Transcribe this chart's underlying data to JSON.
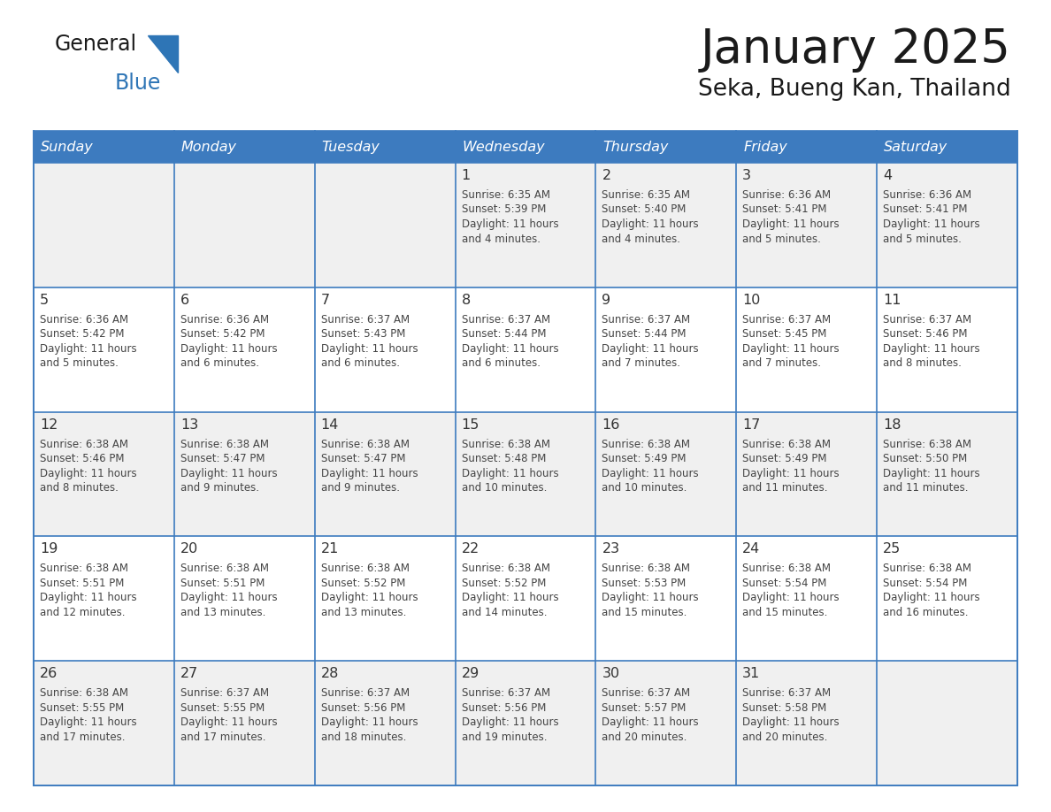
{
  "title": "January 2025",
  "subtitle": "Seka, Bueng Kan, Thailand",
  "days_of_week": [
    "Sunday",
    "Monday",
    "Tuesday",
    "Wednesday",
    "Thursday",
    "Friday",
    "Saturday"
  ],
  "header_bg": "#3d7bbf",
  "header_text": "#ffffff",
  "odd_row_bg": "#f0f0f0",
  "even_row_bg": "#ffffff",
  "border_color": "#3d7bbf",
  "text_color": "#444444",
  "day_num_color": "#333333",
  "logo_triangle_color": "#2e75b6",
  "calendar_data": [
    [
      {
        "day": 0,
        "sunrise": "",
        "sunset": "",
        "daylight": ""
      },
      {
        "day": 0,
        "sunrise": "",
        "sunset": "",
        "daylight": ""
      },
      {
        "day": 0,
        "sunrise": "",
        "sunset": "",
        "daylight": ""
      },
      {
        "day": 1,
        "sunrise": "6:35 AM",
        "sunset": "5:39 PM",
        "daylight": "11 hours and 4 minutes."
      },
      {
        "day": 2,
        "sunrise": "6:35 AM",
        "sunset": "5:40 PM",
        "daylight": "11 hours and 4 minutes."
      },
      {
        "day": 3,
        "sunrise": "6:36 AM",
        "sunset": "5:41 PM",
        "daylight": "11 hours and 5 minutes."
      },
      {
        "day": 4,
        "sunrise": "6:36 AM",
        "sunset": "5:41 PM",
        "daylight": "11 hours and 5 minutes."
      }
    ],
    [
      {
        "day": 5,
        "sunrise": "6:36 AM",
        "sunset": "5:42 PM",
        "daylight": "11 hours and 5 minutes."
      },
      {
        "day": 6,
        "sunrise": "6:36 AM",
        "sunset": "5:42 PM",
        "daylight": "11 hours and 6 minutes."
      },
      {
        "day": 7,
        "sunrise": "6:37 AM",
        "sunset": "5:43 PM",
        "daylight": "11 hours and 6 minutes."
      },
      {
        "day": 8,
        "sunrise": "6:37 AM",
        "sunset": "5:44 PM",
        "daylight": "11 hours and 6 minutes."
      },
      {
        "day": 9,
        "sunrise": "6:37 AM",
        "sunset": "5:44 PM",
        "daylight": "11 hours and 7 minutes."
      },
      {
        "day": 10,
        "sunrise": "6:37 AM",
        "sunset": "5:45 PM",
        "daylight": "11 hours and 7 minutes."
      },
      {
        "day": 11,
        "sunrise": "6:37 AM",
        "sunset": "5:46 PM",
        "daylight": "11 hours and 8 minutes."
      }
    ],
    [
      {
        "day": 12,
        "sunrise": "6:38 AM",
        "sunset": "5:46 PM",
        "daylight": "11 hours and 8 minutes."
      },
      {
        "day": 13,
        "sunrise": "6:38 AM",
        "sunset": "5:47 PM",
        "daylight": "11 hours and 9 minutes."
      },
      {
        "day": 14,
        "sunrise": "6:38 AM",
        "sunset": "5:47 PM",
        "daylight": "11 hours and 9 minutes."
      },
      {
        "day": 15,
        "sunrise": "6:38 AM",
        "sunset": "5:48 PM",
        "daylight": "11 hours and 10 minutes."
      },
      {
        "day": 16,
        "sunrise": "6:38 AM",
        "sunset": "5:49 PM",
        "daylight": "11 hours and 10 minutes."
      },
      {
        "day": 17,
        "sunrise": "6:38 AM",
        "sunset": "5:49 PM",
        "daylight": "11 hours and 11 minutes."
      },
      {
        "day": 18,
        "sunrise": "6:38 AM",
        "sunset": "5:50 PM",
        "daylight": "11 hours and 11 minutes."
      }
    ],
    [
      {
        "day": 19,
        "sunrise": "6:38 AM",
        "sunset": "5:51 PM",
        "daylight": "11 hours and 12 minutes."
      },
      {
        "day": 20,
        "sunrise": "6:38 AM",
        "sunset": "5:51 PM",
        "daylight": "11 hours and 13 minutes."
      },
      {
        "day": 21,
        "sunrise": "6:38 AM",
        "sunset": "5:52 PM",
        "daylight": "11 hours and 13 minutes."
      },
      {
        "day": 22,
        "sunrise": "6:38 AM",
        "sunset": "5:52 PM",
        "daylight": "11 hours and 14 minutes."
      },
      {
        "day": 23,
        "sunrise": "6:38 AM",
        "sunset": "5:53 PM",
        "daylight": "11 hours and 15 minutes."
      },
      {
        "day": 24,
        "sunrise": "6:38 AM",
        "sunset": "5:54 PM",
        "daylight": "11 hours and 15 minutes."
      },
      {
        "day": 25,
        "sunrise": "6:38 AM",
        "sunset": "5:54 PM",
        "daylight": "11 hours and 16 minutes."
      }
    ],
    [
      {
        "day": 26,
        "sunrise": "6:38 AM",
        "sunset": "5:55 PM",
        "daylight": "11 hours and 17 minutes."
      },
      {
        "day": 27,
        "sunrise": "6:37 AM",
        "sunset": "5:55 PM",
        "daylight": "11 hours and 17 minutes."
      },
      {
        "day": 28,
        "sunrise": "6:37 AM",
        "sunset": "5:56 PM",
        "daylight": "11 hours and 18 minutes."
      },
      {
        "day": 29,
        "sunrise": "6:37 AM",
        "sunset": "5:56 PM",
        "daylight": "11 hours and 19 minutes."
      },
      {
        "day": 30,
        "sunrise": "6:37 AM",
        "sunset": "5:57 PM",
        "daylight": "11 hours and 20 minutes."
      },
      {
        "day": 31,
        "sunrise": "6:37 AM",
        "sunset": "5:58 PM",
        "daylight": "11 hours and 20 minutes."
      },
      {
        "day": 0,
        "sunrise": "",
        "sunset": "",
        "daylight": ""
      }
    ]
  ]
}
